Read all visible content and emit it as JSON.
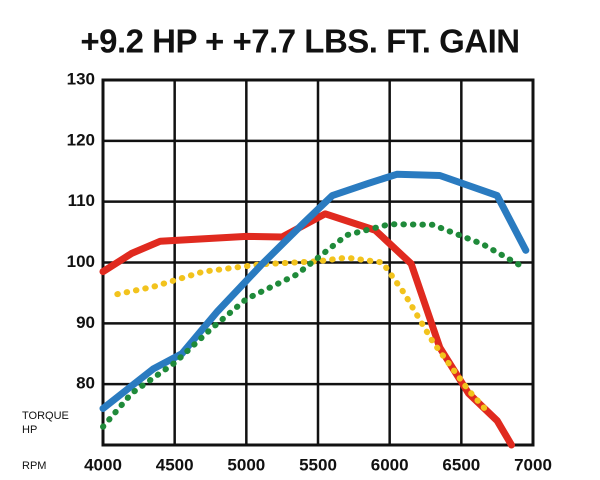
{
  "chart_data": {
    "type": "line",
    "title": "+9.2 HP + +7.7 LBS. FT. GAIN",
    "ylabel_lines": [
      "TORQUE",
      "HP"
    ],
    "xlabel": "RPM",
    "xlim": [
      4000,
      7000
    ],
    "xticks": [
      4000,
      4500,
      5000,
      5500,
      6000,
      6500,
      7000
    ],
    "ylim": [
      70,
      130
    ],
    "yticks": [
      80,
      90,
      100,
      110,
      120,
      130
    ],
    "grid": true,
    "series": [
      {
        "color": "#e02a1f",
        "dotted": false,
        "x": [
          4000,
          4200,
          4400,
          5000,
          5250,
          5550,
          5900,
          6150,
          6350,
          6550,
          6750,
          6850
        ],
        "values": [
          98.5,
          101.5,
          103.5,
          104.3,
          104.2,
          108,
          105.3,
          99.8,
          86,
          78.5,
          74,
          70
        ]
      },
      {
        "color": "#f2c31d",
        "dotted": true,
        "x": [
          4100,
          4350,
          4700,
          5100,
          5500,
          5700,
          5950,
          6100,
          6300,
          6550,
          6700
        ],
        "values": [
          94.8,
          96,
          98.5,
          99.7,
          100.2,
          100.8,
          100,
          95,
          87,
          79,
          75
        ]
      },
      {
        "color": "#2a7bc0",
        "dotted": false,
        "x": [
          4000,
          4350,
          4550,
          4800,
          5100,
          5400,
          5600,
          5850,
          6050,
          6350,
          6750,
          6950
        ],
        "values": [
          76,
          82.5,
          85,
          92,
          99.5,
          106.5,
          111,
          113,
          114.5,
          114.3,
          111,
          102
        ]
      },
      {
        "color": "#1f8a3a",
        "dotted": true,
        "x": [
          4000,
          4200,
          4500,
          4750,
          5000,
          5350,
          5700,
          6000,
          6300,
          6650,
          6950
        ],
        "values": [
          73,
          78.5,
          83.5,
          89,
          94,
          98,
          104.5,
          106.3,
          106.2,
          103,
          99
        ]
      }
    ]
  }
}
